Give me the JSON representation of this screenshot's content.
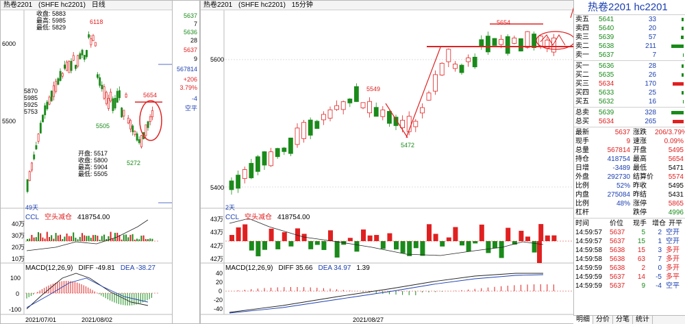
{
  "left": {
    "title": "热卷2201",
    "code": "(SHFE hc2201)",
    "period": "日线",
    "ohlc_top": [
      {
        "label": "收盘",
        "value": "5883"
      },
      {
        "label": "最高",
        "value": "5985"
      },
      {
        "label": "最低",
        "value": "5829"
      }
    ],
    "ohlc_left": [
      "5870",
      "5985",
      "5925",
      "5753"
    ],
    "ohlc_bottom": [
      {
        "label": "开盘",
        "value": "5517"
      },
      {
        "label": "收盘",
        "value": "5800"
      },
      {
        "label": "最高",
        "value": "5904"
      },
      {
        "label": "最低",
        "value": "5505"
      }
    ],
    "y_labels": [
      "6000",
      "5500"
    ],
    "mark_high": "6118",
    "mark_low1": "5505",
    "mark_low2": "5272",
    "mark_recent": "5654",
    "days_label": "49天",
    "ccl_label": "CCL",
    "ccl_title": "空头减仓",
    "ccl_value": "418754.00",
    "ccl_y": [
      "40万",
      "30万",
      "20万",
      "10万"
    ],
    "macd_label": "MACD(12,26,9)",
    "diff_label": "DIFF -49.81",
    "dea_label": "DEA -38.27",
    "macd_y": [
      "100",
      "0",
      "-100"
    ],
    "dates": [
      "2021/07/01",
      "2021/08/02"
    ]
  },
  "mid": {
    "values": [
      "5637",
      "7",
      "5636",
      "28",
      "5637",
      "9",
      "567814",
      "+206",
      "3.79%",
      "-4",
      "空平"
    ]
  },
  "right": {
    "title": "热卷2201",
    "code": "(SHFE hc2201)",
    "period": "15分钟",
    "y_labels": [
      "5600",
      "5400"
    ],
    "mark_5654": "5654",
    "mark_5549": "5549",
    "mark_5472": "5472",
    "days_label": "2天",
    "ccl_label": "CCL",
    "ccl_title": "空头减仓",
    "ccl_value": "418754.00",
    "ccl_y": [
      "43万",
      "43万",
      "42万",
      "42万"
    ],
    "macd_label": "MACD(12,26,9)",
    "diff_label": "DIFF 35.66",
    "dea_label": "DEA 34.97",
    "macd_val": "1.39",
    "macd_y": [
      "40",
      "20",
      "0",
      "-20",
      "-40"
    ],
    "date": "2021/08/27"
  },
  "info": {
    "title": "热卷2201  hc2201",
    "asks": [
      {
        "label": "卖五",
        "price": "5641",
        "vol": "33",
        "bar": 2
      },
      {
        "label": "卖四",
        "price": "5640",
        "vol": "20",
        "bar": 2
      },
      {
        "label": "卖三",
        "price": "5639",
        "vol": "57",
        "bar": 3
      },
      {
        "label": "卖二",
        "price": "5638",
        "vol": "211",
        "bar": 14
      },
      {
        "label": "卖一",
        "price": "5637",
        "vol": "7",
        "bar": 1
      }
    ],
    "bids": [
      {
        "label": "买一",
        "price": "5636",
        "vol": "28",
        "bar": 2
      },
      {
        "label": "买二",
        "price": "5635",
        "vol": "26",
        "bar": 2
      },
      {
        "label": "买三",
        "price": "5634",
        "vol": "170",
        "bar": 12
      },
      {
        "label": "买四",
        "price": "5633",
        "vol": "25",
        "bar": 2
      },
      {
        "label": "买五",
        "price": "5632",
        "vol": "16",
        "bar": 1
      }
    ],
    "totals": [
      {
        "label": "总卖",
        "price": "5639",
        "vol": "328",
        "bar": 14
      },
      {
        "label": "总买",
        "price": "5634",
        "vol": "265",
        "bar": 12
      }
    ],
    "stats": [
      {
        "l1": "最新",
        "v1": "5637",
        "l2": "涨跌",
        "v2": "206/3.79%"
      },
      {
        "l1": "现手",
        "v1": "9",
        "l2": "速涨",
        "v2": "0.09%"
      },
      {
        "l1": "总量",
        "v1": "567814",
        "l2": "开盘",
        "v2": "5495"
      },
      {
        "l1": "持仓",
        "v1": "418754",
        "l2": "最高",
        "v2": "5654"
      },
      {
        "l1": "日增",
        "v1": "-3489",
        "l2": "最低",
        "v2": "5471"
      },
      {
        "l1": "外盘",
        "v1": "292730",
        "l2": "结算价",
        "v2": "5574"
      },
      {
        "l1": "比例",
        "v1": "52%",
        "l2": "昨收",
        "v2": "5495"
      },
      {
        "l1": "内盘",
        "v1": "275084",
        "l2": "昨结",
        "v2": "5431"
      },
      {
        "l1": "比例",
        "v1": "48%",
        "l2": "涨停",
        "v2": "5865"
      },
      {
        "l1": "杠杆",
        "v1": "",
        "l2": "跌停",
        "v2": "4996"
      }
    ],
    "trade_headers": [
      "时间",
      "价位",
      "现手",
      "增仓",
      "开平"
    ],
    "trades": [
      {
        "time": "14:59:57",
        "price": "5637",
        "vol": "5",
        "chg": "2",
        "type": "空开"
      },
      {
        "time": "14:59:57",
        "price": "5637",
        "vol": "15",
        "chg": "1",
        "type": "空开"
      },
      {
        "time": "14:59:58",
        "price": "5638",
        "vol": "15",
        "chg": "3",
        "type": "多开"
      },
      {
        "time": "14:59:58",
        "price": "5638",
        "vol": "63",
        "chg": "7",
        "type": "多开"
      },
      {
        "time": "14:59:59",
        "price": "5638",
        "vol": "2",
        "chg": "0",
        "type": "多开"
      },
      {
        "time": "14:59:59",
        "price": "5637",
        "vol": "14",
        "chg": "-5",
        "type": "多平"
      },
      {
        "time": "14:59:59",
        "price": "5637",
        "vol": "9",
        "chg": "-4",
        "type": "空平"
      }
    ],
    "tabs": [
      "明细",
      "分价",
      "分笔",
      "统计"
    ]
  }
}
